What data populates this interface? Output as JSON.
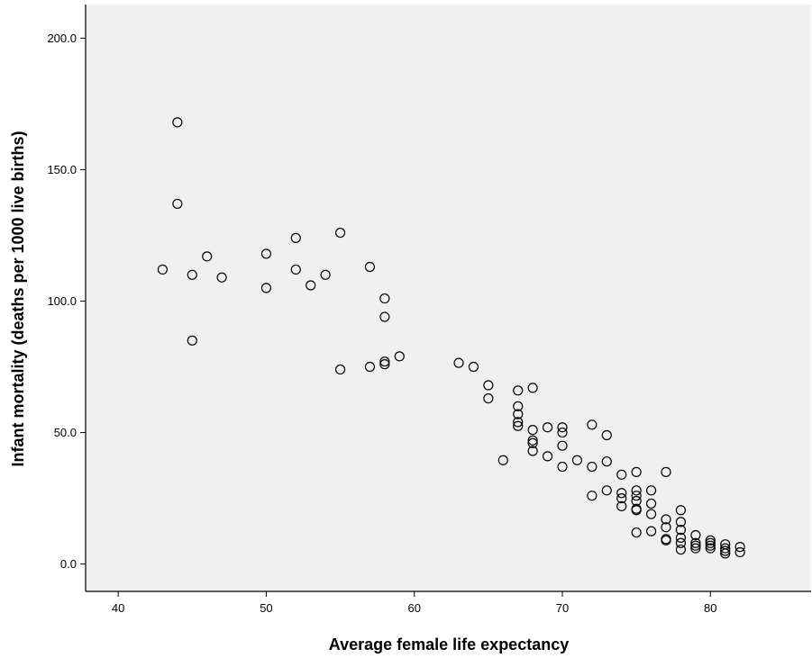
{
  "chart_data": {
    "type": "scatter",
    "xlabel": "Average female life expectancy",
    "ylabel": "Infant mortality (deaths per 1000 live births)",
    "xlim": [
      37.8,
      86.8
    ],
    "ylim": [
      -10.4,
      212.8
    ],
    "x_ticks": [
      "40",
      "50",
      "60",
      "70",
      "80"
    ],
    "y_ticks": [
      "0.0",
      "50.0",
      "100.0",
      "150.0",
      "200.0"
    ],
    "grid": false,
    "marker": "open-circle",
    "colors": {
      "plot_background": "#f0f0f0",
      "marker_edge": "#000000"
    },
    "points": [
      [
        43,
        112
      ],
      [
        44,
        168
      ],
      [
        44,
        137
      ],
      [
        45,
        110
      ],
      [
        45,
        85
      ],
      [
        46,
        117
      ],
      [
        47,
        109
      ],
      [
        50,
        118
      ],
      [
        50,
        105
      ],
      [
        52,
        124
      ],
      [
        52,
        112
      ],
      [
        53,
        106
      ],
      [
        54,
        110
      ],
      [
        55,
        126
      ],
      [
        55,
        74
      ],
      [
        57,
        113
      ],
      [
        57,
        75
      ],
      [
        58,
        101
      ],
      [
        58,
        94
      ],
      [
        58,
        77
      ],
      [
        58,
        76
      ],
      [
        59,
        79
      ],
      [
        63,
        76.5
      ],
      [
        64,
        75
      ],
      [
        65,
        68
      ],
      [
        65,
        63
      ],
      [
        66,
        39.5
      ],
      [
        67,
        66
      ],
      [
        67,
        60
      ],
      [
        67,
        57
      ],
      [
        67,
        54
      ],
      [
        67,
        52.5
      ],
      [
        68,
        67
      ],
      [
        68,
        51
      ],
      [
        68,
        47
      ],
      [
        68,
        46
      ],
      [
        68,
        43
      ],
      [
        69,
        52
      ],
      [
        69,
        41
      ],
      [
        70,
        52
      ],
      [
        70,
        50
      ],
      [
        70,
        45
      ],
      [
        70,
        37
      ],
      [
        71,
        39.5
      ],
      [
        72,
        53
      ],
      [
        72,
        37
      ],
      [
        72,
        26
      ],
      [
        73,
        49
      ],
      [
        73,
        39
      ],
      [
        73,
        28
      ],
      [
        74,
        34
      ],
      [
        74,
        27
      ],
      [
        74,
        25
      ],
      [
        74,
        22
      ],
      [
        75,
        35
      ],
      [
        75,
        28
      ],
      [
        75,
        26
      ],
      [
        75,
        24
      ],
      [
        75,
        21
      ],
      [
        75,
        20.5
      ],
      [
        75,
        12
      ],
      [
        76,
        28
      ],
      [
        76,
        23
      ],
      [
        76,
        19
      ],
      [
        76,
        12.5
      ],
      [
        77,
        35
      ],
      [
        77,
        17
      ],
      [
        77,
        14
      ],
      [
        77,
        9.5
      ],
      [
        77,
        9
      ],
      [
        78,
        20.5
      ],
      [
        78,
        16
      ],
      [
        78,
        13
      ],
      [
        78,
        10
      ],
      [
        78,
        8
      ],
      [
        78,
        5.5
      ],
      [
        79,
        11
      ],
      [
        79,
        8
      ],
      [
        79,
        7
      ],
      [
        79,
        6
      ],
      [
        80,
        9
      ],
      [
        80,
        8
      ],
      [
        80,
        7
      ],
      [
        80,
        6
      ],
      [
        81,
        7.5
      ],
      [
        81,
        6
      ],
      [
        81,
        5
      ],
      [
        81,
        4
      ],
      [
        82,
        6.5
      ],
      [
        82,
        4.5
      ]
    ]
  }
}
